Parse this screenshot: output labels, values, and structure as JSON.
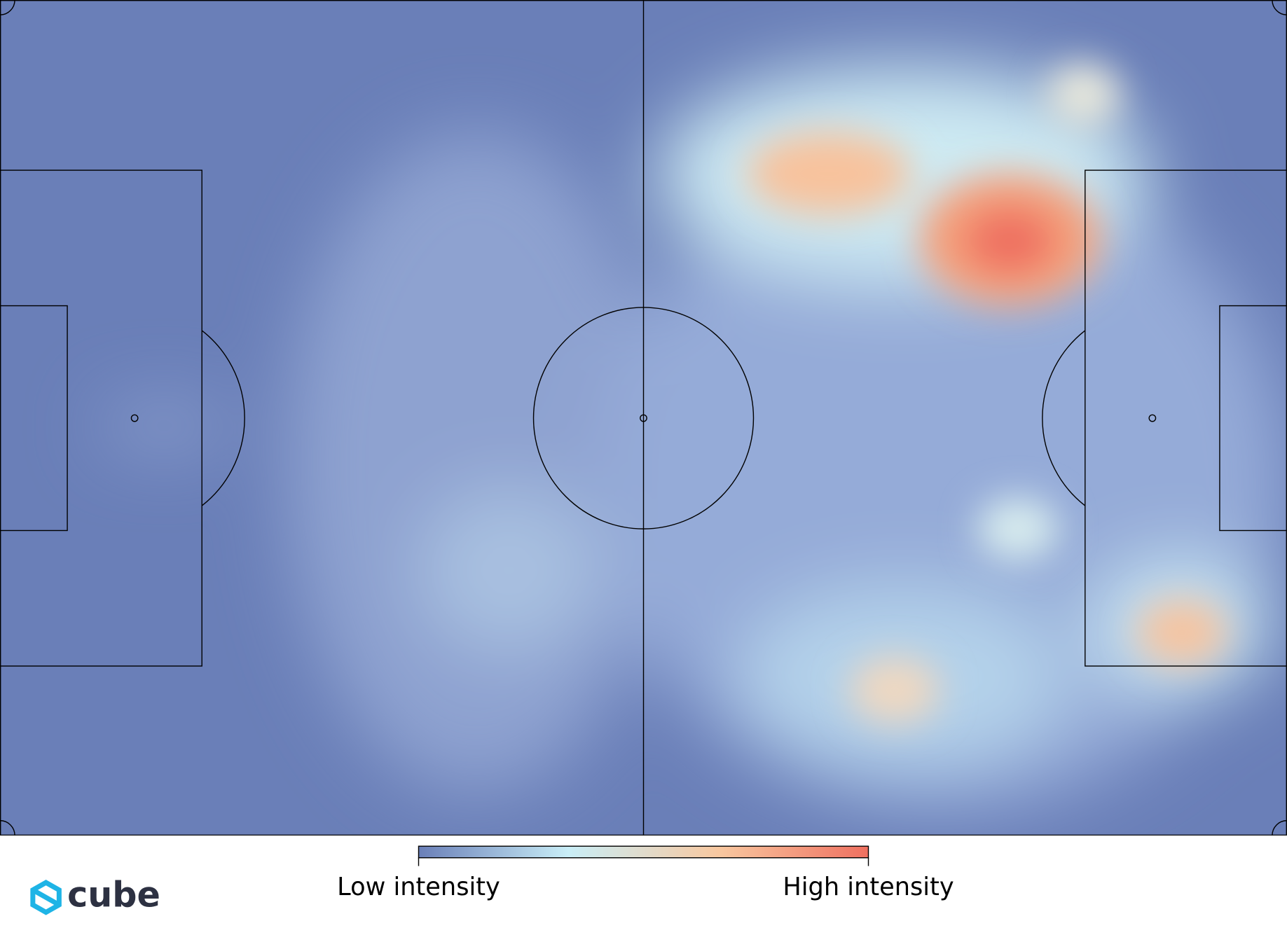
{
  "chart_data": {
    "type": "heatmap",
    "colorbar": {
      "low_label": "Low intensity",
      "high_label": "High intensity",
      "colors": [
        "#6a7fb8",
        "#c9eef7",
        "#f8c8a0",
        "#ef7060"
      ]
    },
    "logo": "cube"
  }
}
